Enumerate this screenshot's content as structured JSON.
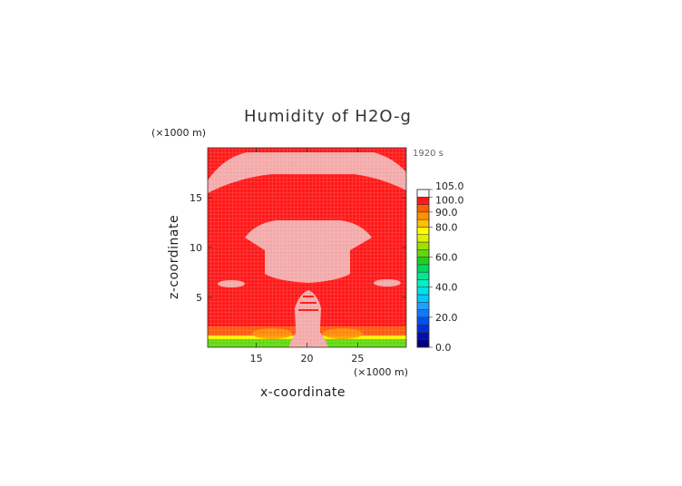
{
  "chart_data": {
    "type": "heatmap",
    "title": "Humidity of H2O-g",
    "time_label": "1920 s",
    "xlabel": "x-coordinate",
    "ylabel": "z-coordinate",
    "x_unit": "(×1000 m)",
    "z_unit": "(×1000 m)",
    "xlim": [
      10.2,
      29.8
    ],
    "zlim": [
      0,
      20
    ],
    "x_ticks": [
      15,
      20,
      25
    ],
    "z_ticks": [
      5,
      10,
      15
    ],
    "colorbar": {
      "tick_labels": [
        "0.0",
        "20.0",
        "40.0",
        "60.0",
        "80.0",
        "90.0",
        "100.0",
        "105.0"
      ],
      "tick_values": [
        0,
        20,
        40,
        60,
        80,
        90,
        100,
        105
      ],
      "levels": [
        0,
        5,
        10,
        15,
        20,
        25,
        30,
        35,
        40,
        45,
        50,
        55,
        60,
        65,
        70,
        75,
        80,
        85,
        90,
        95,
        100,
        105
      ],
      "colors": [
        "#000080",
        "#0010b0",
        "#0030d8",
        "#0050f0",
        "#1078ff",
        "#20a0ff",
        "#00c8ff",
        "#00e0e8",
        "#00f0c8",
        "#00e890",
        "#00d860",
        "#20d020",
        "#60d810",
        "#a0e000",
        "#e0f000",
        "#ffff00",
        "#ffc000",
        "#ff9000",
        "#ff6000",
        "#ff1818",
        "#ffffff"
      ]
    },
    "field_values": {
      "background": 97,
      "moist_regions": 102,
      "near_surface": 82
    }
  }
}
